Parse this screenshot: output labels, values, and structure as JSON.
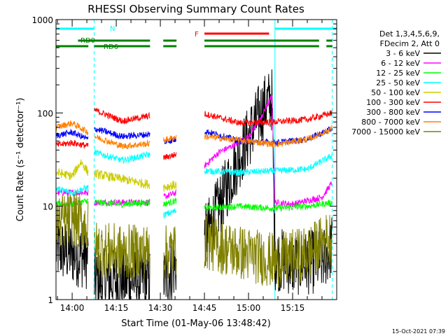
{
  "chart_data": {
    "type": "line",
    "title": "RHESSI Observing Summary Count Rates",
    "xlabel": "Start Time (01-May-06 13:48:42)",
    "ylabel": "Count Rate (s⁻¹ detector⁻¹)",
    "yscale": "log",
    "ylim": [
      1,
      1000
    ],
    "xlim_minutes": [
      -5.5,
      90
    ],
    "x_tick_labels": [
      "14:00",
      "14:15",
      "14:30",
      "14:45",
      "15:00",
      "15:15"
    ],
    "x_ticks_minutes": [
      0,
      15,
      30,
      45,
      60,
      75
    ],
    "y_tick_labels": [
      "1",
      "10",
      "100",
      "1000"
    ],
    "y_ticks": [
      1,
      10,
      100,
      1000
    ],
    "legend_header": [
      "Det 1,3,4,5,6,9,",
      "FDecim 2, Att 0"
    ],
    "legend_position": "right",
    "timestamp": "15-Oct-2021 07:39",
    "flags": [
      {
        "label": "N",
        "color": "#00ffff",
        "segments": [
          [
            -5.5,
            7.5
          ],
          [
            69,
            90
          ]
        ]
      },
      {
        "label": "F",
        "color": "#ff0000",
        "segments": [
          [
            45,
            67
          ]
        ]
      },
      {
        "label": "RD0",
        "color": "#008000",
        "segments": [
          [
            2,
            26.5
          ],
          [
            31,
            35.5
          ],
          [
            45,
            84
          ],
          [
            86.5,
            88.5
          ]
        ]
      },
      {
        "label": "RD6",
        "color": "#008000",
        "segments": [
          [
            -5.5,
            5.5
          ],
          [
            7.5,
            26.5
          ],
          [
            31,
            35.5
          ],
          [
            45,
            84
          ],
          [
            86.5,
            88.5
          ]
        ]
      }
    ],
    "gaps_minutes": [
      [
        5.5,
        7.5
      ],
      [
        26.5,
        31
      ],
      [
        35.5,
        45
      ]
    ],
    "vertical_lines": [
      {
        "x": -5.5,
        "color": "#00ffff",
        "style": "solid"
      },
      {
        "x": 7.5,
        "color": "#00ffff",
        "style": "dashed"
      },
      {
        "x": 69,
        "color": "#00ffff",
        "style": "solid"
      },
      {
        "x": 88.5,
        "color": "#00ffff",
        "style": "dashed"
      }
    ],
    "series": [
      {
        "name": "3 - 6 keV",
        "color": "#000000",
        "x": [
          -5.5,
          5.5,
          7.5,
          26.5,
          31,
          36,
          45,
          50,
          55,
          60,
          64,
          66,
          68,
          69,
          75,
          85,
          88.5
        ],
        "y": [
          3.5,
          2.8,
          1.6,
          1.6,
          1.6,
          2.5,
          4.5,
          10,
          25,
          55,
          100,
          125,
          140,
          2.8,
          2.4,
          2.6,
          3.8
        ]
      },
      {
        "name": "6 - 12 keV",
        "color": "#ff00ff",
        "x": [
          -5.5,
          5.5,
          7.5,
          26.5,
          31,
          35.5,
          45,
          50,
          55,
          60,
          64,
          66,
          68,
          69,
          75,
          85,
          88.5
        ],
        "y": [
          14,
          14,
          11,
          11,
          12.5,
          14,
          27,
          38,
          45,
          55,
          85,
          115,
          150,
          11,
          10.5,
          12.5,
          18
        ]
      },
      {
        "name": "12 - 25 keV",
        "color": "#00ff00",
        "x": [
          -5.5,
          0,
          5.5,
          7.5,
          17,
          26.5,
          31,
          35.5,
          45,
          57,
          69,
          80,
          88.5
        ],
        "y": [
          10.5,
          10.5,
          11.5,
          11,
          10.5,
          11,
          10.5,
          11.5,
          9.5,
          10,
          9.5,
          10,
          11
        ]
      },
      {
        "name": "25 - 50 keV",
        "color": "#00ffff",
        "x": [
          -5.5,
          0,
          5.5,
          7.5,
          17,
          26.5,
          31,
          35.5,
          45,
          57,
          69,
          80,
          88.5
        ],
        "y": [
          15.5,
          14,
          16,
          38,
          31,
          36,
          8,
          9,
          24,
          23,
          24,
          25,
          35
        ]
      },
      {
        "name": "50 - 100 keV",
        "color": "#cccc00",
        "x": [
          -5.5,
          0,
          3,
          5.5,
          31,
          35.5
        ],
        "y": [
          23,
          21,
          30,
          23,
          16,
          17
        ]
      },
      {
        "name": "100 - 300 keV",
        "color": "#ff0000",
        "x": [
          -5.5,
          0,
          5.5,
          7.5,
          17,
          26.5,
          31,
          35.5,
          45,
          57,
          69,
          80,
          88.5
        ],
        "y": [
          45,
          48,
          44,
          108,
          82,
          93,
          33,
          36,
          98,
          78,
          80,
          85,
          100
        ]
      },
      {
        "name": "300 - 800 keV",
        "color": "#0000ff",
        "x": [
          -5.5,
          0,
          5.5,
          7.5,
          17,
          26.5,
          31,
          35.5,
          45,
          57,
          69,
          80,
          88.5
        ],
        "y": [
          57,
          62,
          52,
          68,
          56,
          59,
          49,
          52,
          64,
          50,
          48,
          52,
          68
        ]
      },
      {
        "name": "800 - 7000 keV",
        "color": "#ff8000",
        "x": [
          -5.5,
          0,
          5.5,
          7.5,
          17,
          26.5,
          31,
          35.5,
          45,
          57,
          69,
          80,
          88.5
        ],
        "y": [
          70,
          78,
          62,
          56,
          44,
          47,
          51,
          55,
          56,
          51,
          46,
          52,
          68
        ]
      },
      {
        "name": "7000 - 15000 keV",
        "color": "#808000",
        "x": [
          -5.5,
          0,
          5.5,
          7.5,
          17,
          26.5,
          31,
          35.5,
          45,
          57,
          69,
          80,
          88.5
        ],
        "y": [
          6.5,
          7.5,
          6,
          3.6,
          3.2,
          3.3,
          3.1,
          3.5,
          4.2,
          3.2,
          2.6,
          3.1,
          4.8
        ]
      }
    ]
  }
}
